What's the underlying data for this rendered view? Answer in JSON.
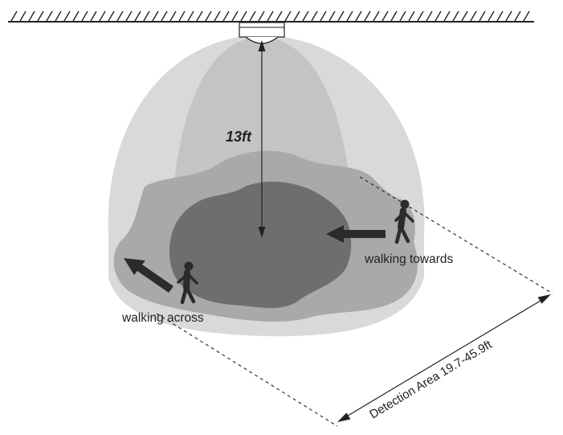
{
  "labels": {
    "height": "13ft",
    "walking_towards": "walking towards",
    "walking_across": "walking across",
    "detection_area": "Detection Area 19.7-45.9ft"
  },
  "colors": {
    "outer_zone": "#d9d9d9",
    "inner_cone": "#c4c4c4",
    "mid_zone": "#a9a9a9",
    "core_zone": "#6e6e6e",
    "arrow": "#2b2b2b",
    "line": "#222222"
  }
}
